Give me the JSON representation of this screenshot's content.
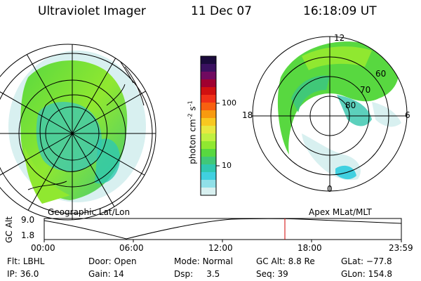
{
  "header": {
    "instrument": "Ultraviolet Imager",
    "date": "11 Dec 07",
    "time": "16:18:09 UT"
  },
  "colorbar": {
    "label": "photon cm",
    "label_exp": "-2",
    "label_s": "s",
    "label_s_exp": "-1",
    "ticks": [
      "100",
      "10"
    ],
    "colors": [
      "#1a0a3c",
      "#3a1060",
      "#700a60",
      "#a00030",
      "#d01010",
      "#f03018",
      "#f86010",
      "#f89a10",
      "#f8c820",
      "#e8e840",
      "#c0f040",
      "#90e830",
      "#58d840",
      "#40c878",
      "#30c8b0",
      "#40d0e0",
      "#90e0e8",
      "#d8f0f0"
    ],
    "scale": "log"
  },
  "left_map": {
    "caption": "Geographic Lat/Lon",
    "projection": "geographic"
  },
  "right_map": {
    "caption": "Apex MLat/MLT",
    "lat_labels": [
      "60",
      "70",
      "80"
    ],
    "mlt_labels": [
      "12",
      "18",
      "6",
      "0"
    ]
  },
  "altitude_plot": {
    "ylabel": "GC Alt",
    "yticks": [
      "9.0",
      "1.8"
    ],
    "xticks": [
      "00:00",
      "06:00",
      "12:00",
      "18:00",
      "23:59"
    ],
    "current_time_marker": "16:18:09",
    "marker_color": "#d00000"
  },
  "status": {
    "flt_label": "Flt:",
    "flt_value": "LBHL",
    "ip_label": "IP:",
    "ip_value": "36.0",
    "door_label": "Door:",
    "door_value": "Open",
    "gain_label": "Gain:",
    "gain_value": "14",
    "mode_label": "Mode:",
    "mode_value": "Normal",
    "dsp_label": "Dsp:",
    "dsp_value": "3.5",
    "gcalt_label": "GC Alt:",
    "gcalt_value": "8.8 Re",
    "seq_label": "Seq:",
    "seq_value": "39",
    "glat_label": "GLat:",
    "glat_value": "−77.8",
    "glon_label": "GLon:",
    "glon_value": "154.8"
  }
}
